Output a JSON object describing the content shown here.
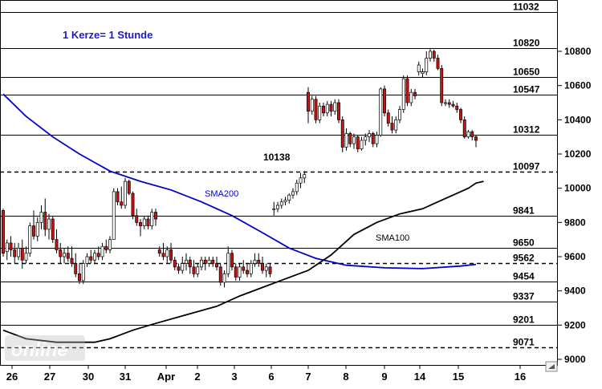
{
  "chart_data": {
    "type": "candlestick",
    "note": "1 Kerze= 1 Stunde",
    "ylim": [
      9000,
      11100
    ],
    "y_ticks": [
      9000,
      9200,
      9400,
      9600,
      9800,
      10000,
      10200,
      10400,
      10600,
      10800
    ],
    "x_ticks": [
      "26",
      "27",
      "30",
      "31",
      "Apr",
      "2",
      "3",
      "6",
      "7",
      "8",
      "9",
      "14",
      "15",
      "16"
    ],
    "levels": [
      {
        "value": 11032,
        "style": "solid",
        "label": "11032"
      },
      {
        "value": 10820,
        "style": "solid",
        "label": "10820"
      },
      {
        "value": 10650,
        "style": "solid",
        "label": "10650"
      },
      {
        "value": 10547,
        "style": "solid",
        "label": "10547"
      },
      {
        "value": 10312,
        "style": "solid",
        "label": "10312"
      },
      {
        "value": 10097,
        "style": "dashed",
        "label": "10097"
      },
      {
        "value": 9841,
        "style": "solid",
        "label": "9841"
      },
      {
        "value": 9650,
        "style": "solid",
        "label": "9650"
      },
      {
        "value": 9562,
        "style": "dashed",
        "label": "9562"
      },
      {
        "value": 9454,
        "style": "solid",
        "label": "9454"
      },
      {
        "value": 9337,
        "style": "solid",
        "label": "9337"
      },
      {
        "value": 9201,
        "style": "solid",
        "label": "9201"
      },
      {
        "value": 9071,
        "style": "dashed",
        "label": "9071"
      }
    ],
    "annotations": [
      {
        "text": "10138",
        "x": 86,
        "y": 10138
      }
    ],
    "candles": [
      [
        0,
        9870,
        9880,
        9600,
        9620
      ],
      [
        1,
        9630,
        9700,
        9580,
        9680
      ],
      [
        2,
        9680,
        9720,
        9600,
        9640
      ],
      [
        3,
        9640,
        9680,
        9560,
        9600
      ],
      [
        4,
        9600,
        9680,
        9580,
        9650
      ],
      [
        5,
        9650,
        9700,
        9530,
        9580
      ],
      [
        6,
        9580,
        9660,
        9560,
        9620
      ],
      [
        7,
        9620,
        9800,
        9600,
        9780
      ],
      [
        8,
        9780,
        9870,
        9700,
        9720
      ],
      [
        9,
        9720,
        9830,
        9690,
        9800
      ],
      [
        10,
        9800,
        9900,
        9760,
        9860
      ],
      [
        11,
        9860,
        9940,
        9720,
        9760
      ],
      [
        12,
        9760,
        9850,
        9700,
        9820
      ],
      [
        13,
        9820,
        9840,
        9680,
        9700
      ],
      [
        14,
        9700,
        9760,
        9620,
        9640
      ],
      [
        15,
        9640,
        9680,
        9560,
        9600
      ],
      [
        16,
        9600,
        9650,
        9560,
        9620
      ],
      [
        17,
        9620,
        9660,
        9570,
        9590
      ],
      [
        18,
        9590,
        9660,
        9540,
        9560
      ],
      [
        19,
        9560,
        9620,
        9480,
        9500
      ],
      [
        20,
        9500,
        9560,
        9440,
        9460
      ],
      [
        21,
        9460,
        9580,
        9440,
        9560
      ],
      [
        22,
        9560,
        9620,
        9540,
        9600
      ],
      [
        23,
        9600,
        9640,
        9560,
        9580
      ],
      [
        24,
        9580,
        9640,
        9560,
        9620
      ],
      [
        25,
        9620,
        9660,
        9580,
        9600
      ],
      [
        26,
        9600,
        9680,
        9580,
        9660
      ],
      [
        27,
        9660,
        9700,
        9620,
        9640
      ],
      [
        28,
        9640,
        9720,
        9620,
        9700
      ],
      [
        29,
        9700,
        10000,
        9700,
        9980
      ],
      [
        30,
        9980,
        10000,
        9900,
        9920
      ],
      [
        31,
        9920,
        10010,
        9880,
        9900
      ],
      [
        32,
        9900,
        10060,
        9880,
        10040
      ],
      [
        33,
        10040,
        10050,
        9960,
        9970
      ],
      [
        34,
        9970,
        9980,
        9820,
        9840
      ],
      [
        35,
        9840,
        9880,
        9780,
        9800
      ],
      [
        36,
        9800,
        9820,
        9720,
        9780
      ],
      [
        37,
        9780,
        9840,
        9760,
        9820
      ],
      [
        38,
        9820,
        9840,
        9760,
        9780
      ],
      [
        39,
        9780,
        9880,
        9760,
        9860
      ],
      [
        40,
        9860,
        9880,
        9780,
        9820
      ],
      [
        41,
        9640,
        9660,
        9600,
        9620
      ],
      [
        42,
        9620,
        9680,
        9580,
        9600
      ],
      [
        43,
        9600,
        9660,
        9560,
        9640
      ],
      [
        44,
        9640,
        9680,
        9560,
        9580
      ],
      [
        45,
        9580,
        9600,
        9520,
        9540
      ],
      [
        46,
        9540,
        9560,
        9500,
        9520
      ],
      [
        47,
        9520,
        9600,
        9500,
        9560
      ],
      [
        48,
        9560,
        9620,
        9520,
        9580
      ],
      [
        49,
        9580,
        9600,
        9500,
        9540
      ],
      [
        50,
        9540,
        9580,
        9480,
        9500
      ],
      [
        51,
        9500,
        9560,
        9480,
        9540
      ],
      [
        52,
        9540,
        9600,
        9520,
        9580
      ],
      [
        53,
        9580,
        9600,
        9520,
        9560
      ],
      [
        54,
        9560,
        9600,
        9540,
        9580
      ],
      [
        55,
        9580,
        9600,
        9540,
        9560
      ],
      [
        56,
        9560,
        9600,
        9520,
        9540
      ],
      [
        57,
        9540,
        9560,
        9430,
        9450
      ],
      [
        58,
        9450,
        9520,
        9420,
        9500
      ],
      [
        59,
        9500,
        9660,
        9480,
        9620
      ],
      [
        60,
        9620,
        9640,
        9520,
        9540
      ],
      [
        61,
        9540,
        9560,
        9460,
        9480
      ],
      [
        62,
        9480,
        9560,
        9460,
        9540
      ],
      [
        63,
        9540,
        9580,
        9500,
        9520
      ],
      [
        64,
        9520,
        9560,
        9480,
        9500
      ],
      [
        65,
        9500,
        9580,
        9480,
        9560
      ],
      [
        66,
        9560,
        9620,
        9540,
        9580
      ],
      [
        67,
        9580,
        9620,
        9540,
        9560
      ],
      [
        68,
        9560,
        9600,
        9500,
        9520
      ],
      [
        69,
        9520,
        9560,
        9480,
        9540
      ],
      [
        70,
        9540,
        9560,
        9480,
        9500
      ],
      [
        71,
        9880,
        9920,
        9840,
        9880
      ],
      [
        72,
        9880,
        9920,
        9860,
        9900
      ],
      [
        73,
        9900,
        9940,
        9880,
        9920
      ],
      [
        74,
        9920,
        9950,
        9900,
        9930
      ],
      [
        75,
        9930,
        9970,
        9910,
        9960
      ],
      [
        76,
        9960,
        10000,
        9940,
        9980
      ],
      [
        77,
        9980,
        10050,
        9960,
        10030
      ],
      [
        78,
        10030,
        10090,
        10000,
        10060
      ],
      [
        79,
        10060,
        10100,
        10030,
        10080
      ],
      [
        80,
        10560,
        10590,
        10380,
        10450
      ],
      [
        81,
        10450,
        10540,
        10430,
        10520
      ],
      [
        82,
        10520,
        10540,
        10380,
        10400
      ],
      [
        83,
        10400,
        10500,
        10380,
        10480
      ],
      [
        84,
        10480,
        10500,
        10420,
        10440
      ],
      [
        85,
        10440,
        10510,
        10420,
        10490
      ],
      [
        86,
        10490,
        10510,
        10420,
        10450
      ],
      [
        87,
        10450,
        10520,
        10430,
        10500
      ],
      [
        88,
        10500,
        10520,
        10380,
        10400
      ],
      [
        89,
        10400,
        10420,
        10210,
        10240
      ],
      [
        90,
        10240,
        10350,
        10220,
        10320
      ],
      [
        91,
        10320,
        10330,
        10240,
        10260
      ],
      [
        92,
        10260,
        10320,
        10230,
        10300
      ],
      [
        93,
        10300,
        10310,
        10210,
        10230
      ],
      [
        94,
        10230,
        10300,
        10220,
        10280
      ],
      [
        95,
        10280,
        10320,
        10250,
        10300
      ],
      [
        96,
        10300,
        10340,
        10270,
        10320
      ],
      [
        97,
        10320,
        10330,
        10240,
        10260
      ],
      [
        98,
        10260,
        10330,
        10240,
        10310
      ],
      [
        99,
        10310,
        10590,
        10300,
        10580
      ],
      [
        100,
        10580,
        10600,
        10420,
        10440
      ],
      [
        101,
        10440,
        10460,
        10360,
        10380
      ],
      [
        102,
        10380,
        10420,
        10320,
        10340
      ],
      [
        103,
        10340,
        10420,
        10320,
        10400
      ],
      [
        104,
        10400,
        10480,
        10380,
        10460
      ],
      [
        105,
        10460,
        10660,
        10440,
        10640
      ],
      [
        106,
        10640,
        10660,
        10480,
        10500
      ],
      [
        107,
        10500,
        10580,
        10480,
        10560
      ],
      [
        108,
        10560,
        10580,
        10520,
        10540
      ],
      [
        109,
        10680,
        10740,
        10660,
        10720
      ],
      [
        110,
        10670,
        10700,
        10650,
        10680
      ],
      [
        111,
        10680,
        10800,
        10660,
        10760
      ],
      [
        112,
        10760,
        10820,
        10740,
        10800
      ],
      [
        113,
        10800,
        10810,
        10740,
        10760
      ],
      [
        114,
        10760,
        10780,
        10690,
        10700
      ],
      [
        115,
        10700,
        10720,
        10480,
        10500
      ],
      [
        116,
        10500,
        10520,
        10480,
        10500
      ],
      [
        117,
        10500,
        10520,
        10470,
        10490
      ],
      [
        118,
        10490,
        10510,
        10470,
        10480
      ],
      [
        119,
        10480,
        10500,
        10440,
        10460
      ],
      [
        120,
        10460,
        10470,
        10380,
        10400
      ],
      [
        121,
        10400,
        10420,
        10290,
        10300
      ],
      [
        122,
        10300,
        10340,
        10290,
        10330
      ],
      [
        123,
        10330,
        10340,
        10280,
        10300
      ],
      [
        124,
        10300,
        10310,
        10240,
        10280
      ]
    ],
    "series": [
      {
        "name": "SMA200",
        "color": "#0000cc",
        "values": [
          [
            0,
            10550
          ],
          [
            6,
            10420
          ],
          [
            13,
            10300
          ],
          [
            20,
            10200
          ],
          [
            28,
            10100
          ],
          [
            36,
            10040
          ],
          [
            44,
            9990
          ],
          [
            52,
            9920
          ],
          [
            60,
            9840
          ],
          [
            68,
            9740
          ],
          [
            75,
            9650
          ],
          [
            82,
            9590
          ],
          [
            90,
            9550
          ],
          [
            100,
            9535
          ],
          [
            110,
            9530
          ],
          [
            120,
            9545
          ],
          [
            124,
            9555
          ]
        ]
      },
      {
        "name": "SMA100",
        "color": "#000000",
        "values": [
          [
            0,
            9170
          ],
          [
            6,
            9120
          ],
          [
            14,
            9100
          ],
          [
            24,
            9100
          ],
          [
            28,
            9120
          ],
          [
            34,
            9170
          ],
          [
            40,
            9210
          ],
          [
            48,
            9260
          ],
          [
            56,
            9310
          ],
          [
            62,
            9370
          ],
          [
            68,
            9420
          ],
          [
            74,
            9470
          ],
          [
            80,
            9520
          ],
          [
            86,
            9610
          ],
          [
            92,
            9730
          ],
          [
            98,
            9800
          ],
          [
            104,
            9850
          ],
          [
            110,
            9880
          ],
          [
            114,
            9920
          ],
          [
            118,
            9960
          ],
          [
            122,
            10000
          ],
          [
            124,
            10030
          ],
          [
            126,
            10040
          ]
        ]
      }
    ]
  },
  "watermark": "online"
}
